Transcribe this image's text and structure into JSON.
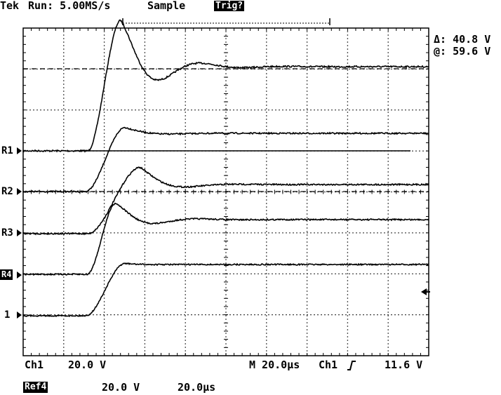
{
  "header": {
    "brand": "Tek",
    "run_status": "Run: 5.00MS/s",
    "acq_mode": "Sample",
    "trigger_status": "Trig?"
  },
  "cursor_readout": {
    "delta": "Δ: 40.8 V",
    "at": "@: 59.6 V"
  },
  "channel_markers": {
    "r1": "R1",
    "r2": "R2",
    "r3": "R3",
    "r4": "R4",
    "ch1": "1"
  },
  "footer": {
    "ch1_label": "Ch1",
    "ch1_scale": "20.0 V",
    "timebase": "M 20.0µs",
    "trig_source": "Ch1",
    "trig_level": "11.6 V",
    "ref_label": "Ref4",
    "ref_vscale": "20.0 V",
    "ref_hscale": "20.0µs"
  },
  "colors": {
    "trace": "#000000",
    "background": "#ffffff",
    "grid": "#000000"
  }
}
